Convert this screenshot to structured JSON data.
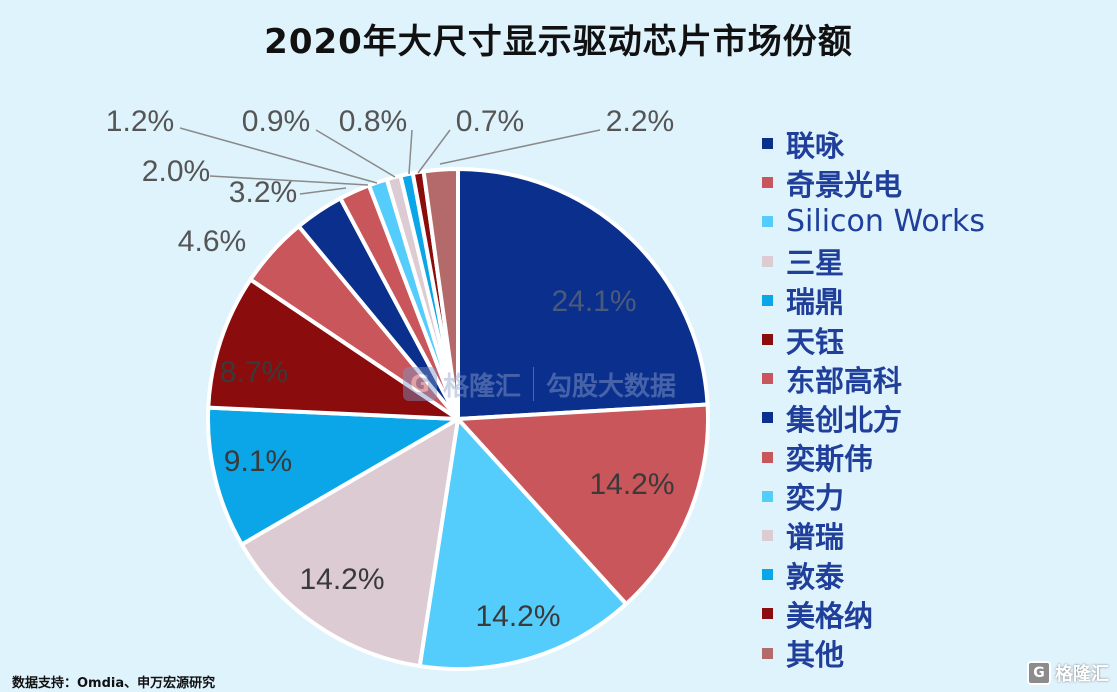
{
  "title": "2020年大尺寸显示驱动芯片市场份额",
  "source_note": "数据支持：Omdia、申万宏源研究",
  "watermark": {
    "center_logo": "G",
    "center_left": "格隆汇",
    "center_right": "勾股大数据",
    "corner_logo": "G",
    "corner_text": "格隆汇"
  },
  "chart_data": {
    "type": "pie",
    "start_angle_deg": 0,
    "direction": "clockwise",
    "slices": [
      {
        "name": "联咏",
        "value": 24.1,
        "label": "24.1%",
        "color": "#0b2f8c"
      },
      {
        "name": "奇景光电",
        "value": 14.2,
        "label": "14.2%",
        "color": "#c8565b"
      },
      {
        "name": "Silicon Works",
        "value": 14.2,
        "label": "14.2%",
        "color": "#55cdfc"
      },
      {
        "name": "三星",
        "value": 14.2,
        "label": "14.2%",
        "color": "#dccbd2"
      },
      {
        "name": "瑞鼎",
        "value": 9.1,
        "label": "9.1%",
        "color": "#0aa6e8"
      },
      {
        "name": "天钰",
        "value": 8.7,
        "label": "8.7%",
        "color": "#8b0c0c"
      },
      {
        "name": "东部高科",
        "value": 4.6,
        "label": "4.6%",
        "color": "#c8565b"
      },
      {
        "name": "集创北方",
        "value": 3.2,
        "label": "3.2%",
        "color": "#0b2f8c"
      },
      {
        "name": "奕斯伟",
        "value": 2.0,
        "label": "2.0%",
        "color": "#c8565b"
      },
      {
        "name": "奕力",
        "value": 1.2,
        "label": "1.2%",
        "color": "#55cdfc"
      },
      {
        "name": "谱瑞",
        "value": 0.9,
        "label": "0.9%",
        "color": "#dccbd2"
      },
      {
        "name": "敦泰",
        "value": 0.8,
        "label": "0.8%",
        "color": "#0aa6e8"
      },
      {
        "name": "美格纳",
        "value": 0.7,
        "label": "0.7%",
        "color": "#8b0c0c"
      },
      {
        "name": "其他",
        "value": 2.2,
        "label": "2.2%",
        "color": "#b46a6a"
      }
    ],
    "legend_position": "right"
  }
}
